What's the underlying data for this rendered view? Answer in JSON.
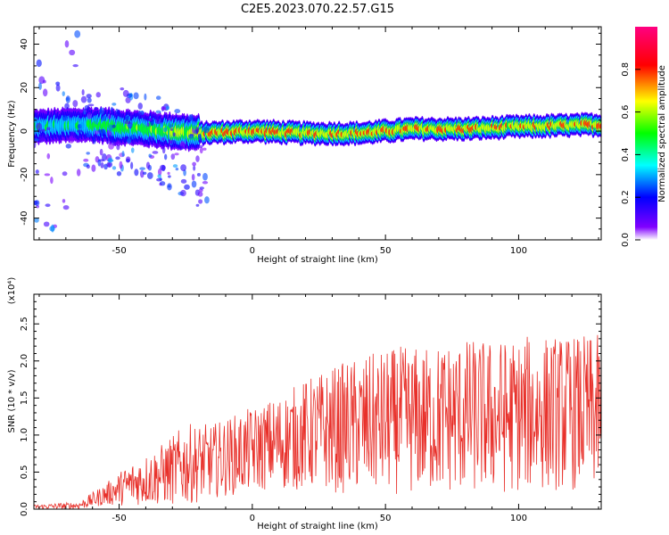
{
  "title": "C2E5.2023.070.22.57.G15",
  "chart_data": [
    {
      "type": "heatmap",
      "xlabel": "Height of straight line (km)",
      "ylabel": "Frequency (Hz)",
      "xlim": [
        -82,
        131
      ],
      "ylim": [
        -50,
        48
      ],
      "xticks": [
        -50,
        0,
        50,
        100
      ],
      "yticks": [
        -40,
        -20,
        0,
        20,
        40
      ],
      "colorbar": {
        "label": "Normalized spectral amplitude",
        "ticks": [
          "0.0",
          "0.2",
          "0.4",
          "0.6",
          "0.8"
        ],
        "tick_values": [
          0.0,
          0.2,
          0.4,
          0.6,
          0.8
        ],
        "range": [
          0,
          1
        ],
        "colormap": [
          "#ffffff",
          "#8000ff",
          "#0000ff",
          "#00ffff",
          "#00ff00",
          "#ffff00",
          "#ff0000",
          "#ff0080"
        ]
      },
      "ridge": {
        "description_points_x": [
          -82,
          -60,
          -40,
          -20,
          0,
          20,
          40,
          60,
          80,
          100,
          131
        ],
        "center_frequency_hz": [
          2,
          3,
          1,
          -1,
          0,
          -1,
          -1,
          1,
          1,
          2,
          3
        ],
        "peak_amplitude": [
          0.45,
          0.55,
          0.6,
          0.75,
          0.85,
          0.8,
          0.8,
          0.85,
          0.8,
          0.75,
          0.85
        ]
      }
    },
    {
      "type": "line",
      "xlabel": "Height of straight line (km)",
      "ylabel": "SNR (10 * v/v)",
      "y_multiplier": "(x10⁴)",
      "xlim": [
        -82,
        131
      ],
      "ylim": [
        0,
        2.9
      ],
      "xticks": [
        -50,
        0,
        50,
        100
      ],
      "yticks": [
        "0.0",
        "0.5",
        "1.0",
        "1.5",
        "2.0",
        "2.5"
      ],
      "ytick_values": [
        0.0,
        0.5,
        1.0,
        1.5,
        2.0,
        2.5
      ],
      "line_color": "#e8302a",
      "envelope": {
        "x": [
          -82,
          -65,
          -55,
          -45,
          -35,
          -25,
          -15,
          -5,
          5,
          15,
          25,
          35,
          45,
          55,
          65,
          75,
          85,
          95,
          105,
          115,
          125,
          131
        ],
        "y_mean": [
          0.03,
          0.05,
          0.2,
          0.35,
          0.45,
          0.6,
          0.65,
          0.75,
          0.85,
          0.95,
          1.05,
          1.1,
          1.15,
          1.2,
          1.2,
          1.25,
          1.25,
          1.25,
          1.3,
          1.3,
          1.3,
          1.3
        ],
        "y_spread": [
          0.03,
          0.05,
          0.15,
          0.3,
          0.4,
          0.55,
          0.5,
          0.55,
          0.6,
          0.7,
          0.8,
          0.9,
          0.95,
          1.0,
          1.0,
          1.05,
          1.05,
          1.05,
          1.05,
          1.05,
          1.05,
          1.05
        ]
      }
    }
  ]
}
